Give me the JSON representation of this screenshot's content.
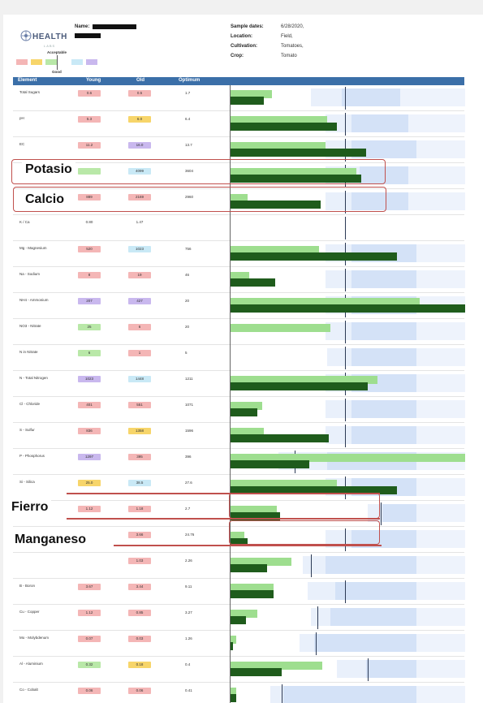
{
  "header": {
    "logo_text": "HEALTH",
    "logo_subtext": "LABS",
    "name_label": "Name:",
    "sample_dates_label": "Sample dates:",
    "sample_dates_value": "6/28/2020,",
    "location_label": "Location:",
    "location_value": "Field,",
    "cultivation_label": "Cultivation:",
    "cultivation_value": "Tomatoes,",
    "crop_label": "Crop:",
    "crop_value": "Tomato"
  },
  "legend": {
    "acceptable_label": "Acceptable",
    "good_label": "Good",
    "colors": [
      "#f4b6b6",
      "#f7d56a",
      "#b9e8a8",
      "#c9e9f6",
      "#c9b8ee"
    ]
  },
  "table": {
    "headers": [
      "Element",
      "Young",
      "Old",
      "Optimum"
    ],
    "rows": [
      {
        "name": "Total Sugars",
        "young": "0.6",
        "old": "0.5",
        "optimum": "1.7"
      },
      {
        "name": "pH",
        "young": "5.3",
        "old": "6.0",
        "optimum": "6.4"
      },
      {
        "name": "EC",
        "young": "11.2",
        "old": "16.0",
        "optimum": "13.7"
      },
      {
        "name": "",
        "young": "",
        "old": "4099",
        "optimum": "3604"
      },
      {
        "name": "",
        "young": "889",
        "old": "2169",
        "optimum": "2960"
      },
      {
        "name": "K / Ca",
        "young": "0.80",
        "old": "1.47",
        "optimum": ""
      },
      {
        "name": "Mg - Magnesium",
        "young": "520",
        "old": "1023",
        "optimum": "756"
      },
      {
        "name": "Na - Sodium",
        "young": "8",
        "old": "19",
        "optimum": "46"
      },
      {
        "name": "NH4 - Ammonium",
        "young": "207",
        "old": "427",
        "optimum": "20"
      },
      {
        "name": "NO3 - Nitrate",
        "young": "25",
        "old": "6",
        "optimum": "20"
      },
      {
        "name": "N in Nitrate",
        "young": "6",
        "old": "1",
        "optimum": "5"
      },
      {
        "name": "N - Total Nitrogen",
        "young": "1023",
        "old": "1448",
        "optimum": "1211"
      },
      {
        "name": "Cl - Chloride",
        "young": "401",
        "old": "551",
        "optimum": "1071"
      },
      {
        "name": "S - Sulfur",
        "young": "836",
        "old": "1358",
        "optimum": "1596"
      },
      {
        "name": "P - Phosphorus",
        "young": "1297",
        "old": "395",
        "optimum": "396"
      },
      {
        "name": "Si - Silica",
        "young": "25.0",
        "old": "38.5",
        "optimum": "27.6"
      },
      {
        "name": "",
        "young": "1.12",
        "old": "1.18",
        "optimum": "2.7"
      },
      {
        "name": "",
        "young": "",
        "old": "3.66",
        "optimum": "24.76"
      },
      {
        "name": "",
        "young": "",
        "old": "1.03",
        "optimum": "2.26"
      },
      {
        "name": "B - Boron",
        "young": "3.67",
        "old": "3.44",
        "optimum": "9.11"
      },
      {
        "name": "Cu - Copper",
        "young": "1.12",
        "old": "0.85",
        "optimum": "3.27"
      },
      {
        "name": "Mo - Molybdenum",
        "young": "0.07",
        "old": "0.03",
        "optimum": "1.26"
      },
      {
        "name": "Al - Aluminium",
        "young": "0.32",
        "old": "0.18",
        "optimum": "0.4"
      },
      {
        "name": "Co - Cobalt",
        "young": "0.06",
        "old": "0.06",
        "optimum": "0.41"
      }
    ]
  },
  "callouts": {
    "potasio": "Potasio",
    "calcio": "Calcio",
    "fierro": "Fierro",
    "manganeso": "Manganeso"
  }
}
